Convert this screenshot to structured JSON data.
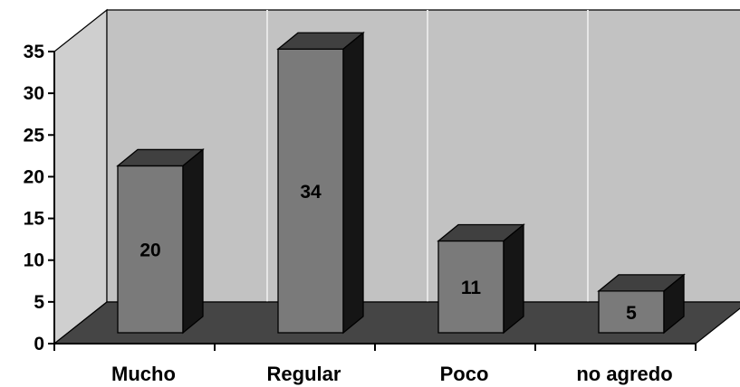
{
  "chart_data": {
    "type": "bar",
    "style": "3d",
    "categories": [
      "Mucho",
      "Regular",
      "Poco",
      "no agredo"
    ],
    "values": [
      20,
      34,
      11,
      5
    ],
    "data_labels": [
      "20",
      "34",
      "11",
      "5"
    ],
    "ylim": [
      0,
      35
    ],
    "y_ticks": [
      0,
      5,
      10,
      15,
      20,
      25,
      30,
      35
    ],
    "title": "",
    "xlabel": "",
    "ylabel": "",
    "grid": false,
    "legend": "none",
    "colors": {
      "bar_front": "#7a7a7a",
      "bar_top": "#404040",
      "bar_side": "#151515",
      "back_wall": "#c2c2c2",
      "side_wall": "#cfcfcf",
      "floor": "#454545"
    }
  }
}
